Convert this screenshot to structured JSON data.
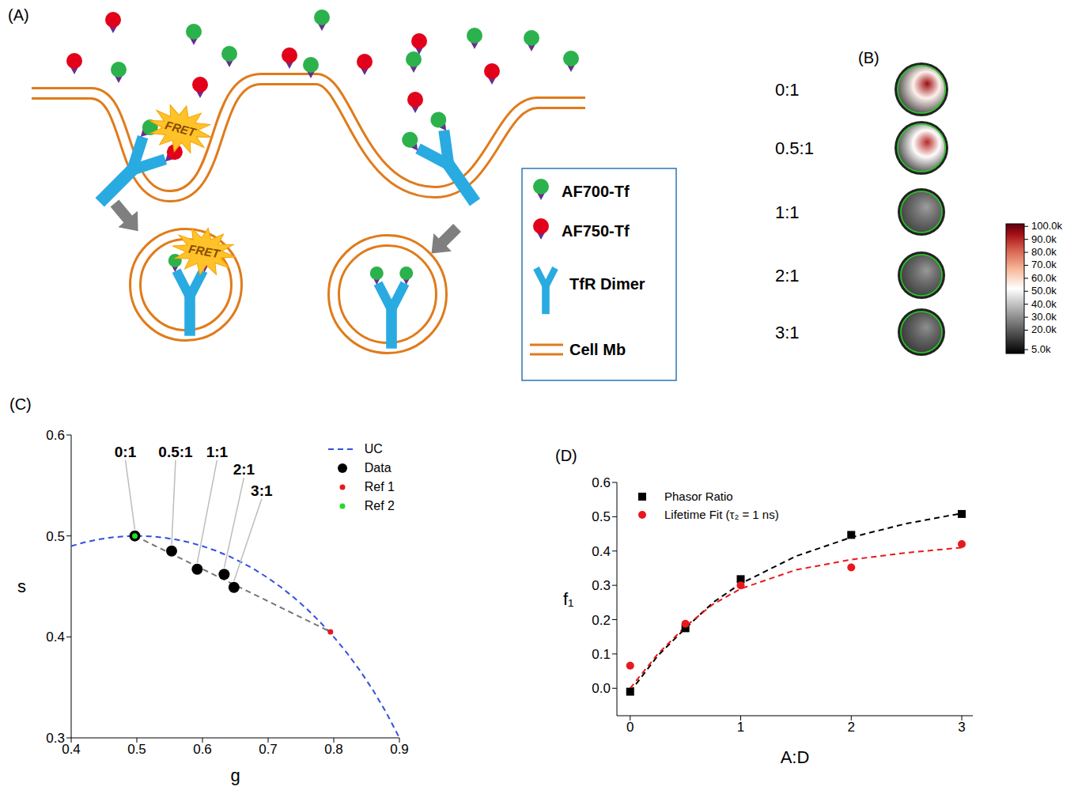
{
  "diagram": {
    "panel_label": "(A)",
    "fret_labels": [
      "FRET",
      "FRET"
    ],
    "legend_items": [
      "AF700-Tf",
      "AF750-Tf",
      "TfR Dimer",
      "Cell Mb"
    ]
  },
  "images": {
    "panel_label": "(B)",
    "items": [
      {
        "label": "0:1",
        "peak": 95000,
        "rim": 15000
      },
      {
        "label": "0.5:1",
        "peak": 90000,
        "rim": 15000
      },
      {
        "label": "1:1",
        "peak": 33000,
        "rim": 15000
      },
      {
        "label": "2:1",
        "peak": 32000,
        "rim": 14000
      },
      {
        "label": "3:1",
        "peak": 30000,
        "rim": 13000
      }
    ],
    "colorbar": {
      "range": [
        2000,
        102000
      ],
      "ticks": [
        {
          "value": 100000,
          "label": "100.0k"
        },
        {
          "value": 90000,
          "label": "90.0k"
        },
        {
          "value": 80000,
          "label": "80.0k"
        },
        {
          "value": 70000,
          "label": "70.0k"
        },
        {
          "value": 60000,
          "label": "60.0k"
        },
        {
          "value": 50000,
          "label": "50.0k"
        },
        {
          "value": 40000,
          "label": "40.0k"
        },
        {
          "value": 30000,
          "label": "30.0k"
        },
        {
          "value": 20000,
          "label": "20.0k"
        },
        {
          "value": 5000,
          "label": "5.0k"
        }
      ]
    }
  },
  "chart_data": [
    {
      "panel_label": "(C)",
      "type": "scatter",
      "x_label": "g",
      "y_label": "s",
      "xlim": [
        0.4,
        0.9
      ],
      "ylim": [
        0.3,
        0.6
      ],
      "xticks": [
        0.4,
        0.5,
        0.6,
        0.7,
        0.8,
        0.9
      ],
      "yticks": [
        0.3,
        0.4,
        0.5,
        0.6
      ],
      "legend": "upper-right",
      "series": [
        {
          "name": "UC",
          "type": "line",
          "color": "#3050e0",
          "line_style": "dashed",
          "x": [
            0.4,
            0.42,
            0.44,
            0.46,
            0.48,
            0.5,
            0.52,
            0.54,
            0.56,
            0.58,
            0.6,
            0.62,
            0.64,
            0.66,
            0.68,
            0.7,
            0.72,
            0.74,
            0.76,
            0.78,
            0.8,
            0.82,
            0.84,
            0.86,
            0.88,
            0.9
          ],
          "values": [
            0.4899,
            0.4936,
            0.4964,
            0.4984,
            0.4996,
            0.5,
            0.4996,
            0.4984,
            0.4964,
            0.4936,
            0.4899,
            0.4854,
            0.48,
            0.4737,
            0.4665,
            0.4583,
            0.449,
            0.4386,
            0.4271,
            0.4142,
            0.4,
            0.3842,
            0.3666,
            0.347,
            0.325,
            0.3
          ]
        },
        {
          "type": "line",
          "color": "#777777",
          "line_style": "dashed",
          "x": [
            0.497,
            0.795
          ],
          "values": [
            0.5,
            0.405
          ]
        },
        {
          "name": "Data",
          "color": "#000000",
          "marker": "circle",
          "x": [
            0.497,
            0.553,
            0.592,
            0.633,
            0.648
          ],
          "values": [
            0.5,
            0.485,
            0.467,
            0.462,
            0.449
          ],
          "point_labels": [
            "0:1",
            "0.5:1",
            "1:1",
            "2:1",
            "3:1"
          ]
        },
        {
          "name": "Ref 1",
          "color": "#e8191c",
          "marker": "circle",
          "x": [
            0.795
          ],
          "values": [
            0.405
          ]
        },
        {
          "name": "Ref 2",
          "color": "#22dd22",
          "marker": "circle",
          "x": [
            0.497
          ],
          "values": [
            0.5
          ]
        }
      ]
    },
    {
      "panel_label": "(D)",
      "type": "scatter",
      "x_label": "A:D",
      "y_label": "f₁",
      "xlim": [
        -0.12,
        3.1
      ],
      "ylim": [
        -0.08,
        0.6
      ],
      "xticks": [
        0,
        1,
        2,
        3
      ],
      "yticks": [
        {
          "value": 0,
          "label": "0.0"
        },
        0.1,
        0.2,
        0.3,
        0.4,
        0.5,
        0.6
      ],
      "legend": "upper-left",
      "series": [
        {
          "type": "line",
          "color": "#000000",
          "line_style": "dashed",
          "x": [
            0,
            0.25,
            0.5,
            0.75,
            1,
            1.5,
            2,
            2.5,
            3
          ],
          "values": [
            -0.01,
            0.095,
            0.175,
            0.25,
            0.305,
            0.385,
            0.44,
            0.48,
            0.51
          ]
        },
        {
          "type": "line",
          "color": "#e8191c",
          "line_style": "dashed",
          "x": [
            0,
            0.25,
            0.5,
            0.75,
            1,
            1.5,
            2,
            2.5,
            3
          ],
          "values": [
            0.0,
            0.1,
            0.18,
            0.245,
            0.29,
            0.345,
            0.375,
            0.395,
            0.41
          ]
        },
        {
          "name": "Phasor Ratio",
          "color": "#000000",
          "marker": "square",
          "x": [
            0,
            0.5,
            1,
            2,
            3
          ],
          "values": [
            -0.01,
            0.175,
            0.318,
            0.447,
            0.508
          ]
        },
        {
          "name": "Lifetime Fit (τ₂ = 1 ns)",
          "color": "#e8191c",
          "marker": "circle",
          "x": [
            0,
            0.5,
            1,
            2,
            3
          ],
          "values": [
            0.066,
            0.188,
            0.3,
            0.352,
            0.42
          ]
        }
      ]
    }
  ]
}
